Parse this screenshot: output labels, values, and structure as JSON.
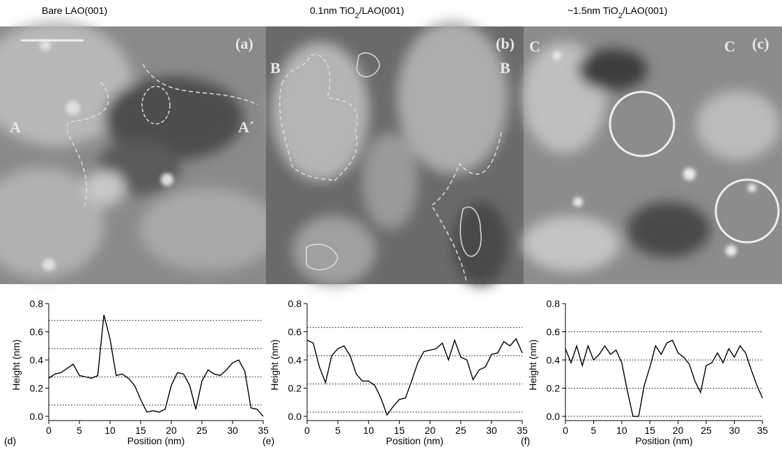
{
  "panels": [
    {
      "title": [
        "Bare LAO(001)"
      ],
      "tag": "(a)",
      "marks": [
        "A",
        "A´"
      ]
    },
    {
      "title": [
        "0.1nm TiO",
        "2",
        "/LAO(001)"
      ],
      "tag": "(b)",
      "marks": [
        "B",
        "B"
      ]
    },
    {
      "title": [
        "~1.5nm TiO",
        "2",
        "/LAO(001)"
      ],
      "tag": "(c)",
      "marks": [
        "C",
        "C"
      ]
    }
  ],
  "chart_data": [
    {
      "type": "line",
      "panel_label": "(d)",
      "x_label": "Position (nm)",
      "y_label": "Height (nm)",
      "xlim": [
        0,
        35
      ],
      "ylim": [
        -0.03,
        0.8
      ],
      "xticks": [
        0,
        5,
        10,
        15,
        20,
        25,
        30,
        35
      ],
      "yticks": [
        {
          "value": 0,
          "label": "0.0"
        },
        0.2,
        0.4,
        0.6,
        0.8
      ],
      "hlines": [
        0.08,
        0.28,
        0.48,
        0.68
      ],
      "x": [
        0,
        1,
        2,
        3,
        4,
        5,
        6,
        7,
        8,
        9,
        10,
        11,
        12,
        13,
        14,
        15,
        16,
        17,
        18,
        19,
        20,
        21,
        22,
        23,
        24,
        25,
        26,
        27,
        28,
        29,
        30,
        31,
        32,
        33,
        34,
        35
      ],
      "series": [
        {
          "color": "#000000",
          "values": [
            0.27,
            0.3,
            0.31,
            0.34,
            0.37,
            0.29,
            0.28,
            0.27,
            0.29,
            0.72,
            0.55,
            0.29,
            0.3,
            0.27,
            0.22,
            0.12,
            0.03,
            0.04,
            0.03,
            0.05,
            0.22,
            0.31,
            0.3,
            0.22,
            0.05,
            0.25,
            0.33,
            0.3,
            0.29,
            0.33,
            0.38,
            0.4,
            0.32,
            0.06,
            0.05,
            0.0
          ]
        }
      ]
    },
    {
      "type": "line",
      "panel_label": "(e)",
      "x_label": "Position (nm)",
      "y_label": "Height (nm)",
      "xlim": [
        0,
        35
      ],
      "ylim": [
        -0.03,
        0.8
      ],
      "xticks": [
        0,
        5,
        10,
        15,
        20,
        25,
        30,
        35
      ],
      "yticks": [
        {
          "value": 0,
          "label": "0.0"
        },
        0.2,
        0.4,
        0.6,
        0.8
      ],
      "hlines": [
        0.03,
        0.23,
        0.43,
        0.63
      ],
      "x": [
        0,
        1,
        2,
        3,
        4,
        5,
        6,
        7,
        8,
        9,
        10,
        11,
        12,
        13,
        14,
        15,
        16,
        17,
        18,
        19,
        20,
        21,
        22,
        23,
        24,
        25,
        26,
        27,
        28,
        29,
        30,
        31,
        32,
        33,
        34,
        35
      ],
      "series": [
        {
          "color": "#000000",
          "values": [
            0.54,
            0.52,
            0.35,
            0.24,
            0.43,
            0.48,
            0.5,
            0.43,
            0.3,
            0.25,
            0.25,
            0.22,
            0.13,
            0.01,
            0.07,
            0.12,
            0.13,
            0.25,
            0.38,
            0.46,
            0.47,
            0.48,
            0.52,
            0.4,
            0.54,
            0.42,
            0.4,
            0.26,
            0.33,
            0.35,
            0.44,
            0.45,
            0.53,
            0.5,
            0.55,
            0.45
          ]
        }
      ]
    },
    {
      "type": "line",
      "panel_label": "(f)",
      "x_label": "Position (nm)",
      "y_label": "Height (nm)",
      "xlim": [
        0,
        35
      ],
      "ylim": [
        -0.03,
        0.8
      ],
      "xticks": [
        0,
        5,
        10,
        15,
        20,
        25,
        30,
        35
      ],
      "yticks": [
        {
          "value": 0,
          "label": "0.0"
        },
        0.2,
        0.4,
        0.6,
        0.8
      ],
      "hlines": [
        0,
        0.2,
        0.4,
        0.6
      ],
      "x": [
        0,
        1,
        2,
        3,
        4,
        5,
        6,
        7,
        8,
        9,
        10,
        11,
        12,
        13,
        14,
        15,
        16,
        17,
        18,
        19,
        20,
        21,
        22,
        23,
        24,
        25,
        26,
        27,
        28,
        29,
        30,
        31,
        32,
        33,
        34,
        35
      ],
      "series": [
        {
          "color": "#000000",
          "values": [
            0.48,
            0.38,
            0.5,
            0.36,
            0.5,
            0.4,
            0.44,
            0.5,
            0.44,
            0.47,
            0.38,
            0.18,
            0.0,
            0.0,
            0.22,
            0.35,
            0.5,
            0.44,
            0.52,
            0.54,
            0.45,
            0.42,
            0.37,
            0.25,
            0.17,
            0.36,
            0.38,
            0.45,
            0.38,
            0.48,
            0.42,
            0.5,
            0.45,
            0.33,
            0.22,
            0.13
          ]
        }
      ]
    }
  ]
}
